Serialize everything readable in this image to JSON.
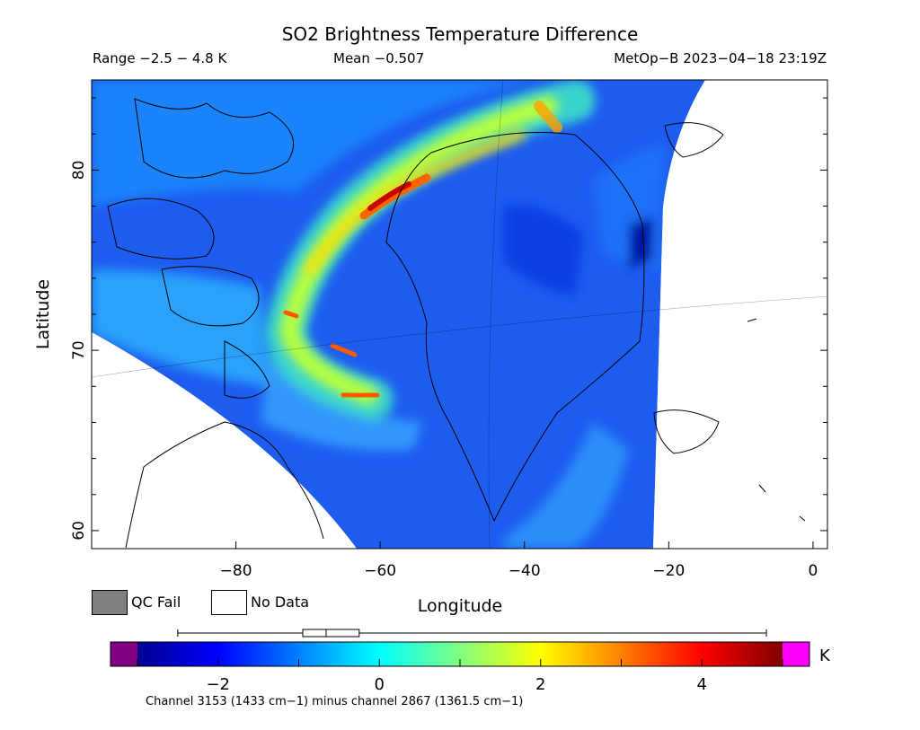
{
  "chart_data": {
    "type": "heatmap",
    "title": "SO2 Brightness Temperature Difference",
    "range_text": "Range −2.5 − 4.8 K",
    "mean_text": "Mean −0.507",
    "satellite_text": "MetOp−B 2023−04−18 23:19Z",
    "xlabel": "Longitude",
    "ylabel": "Latitude",
    "xlim": [
      -100,
      2
    ],
    "ylim": [
      59,
      85
    ],
    "x_ticks": [
      -80,
      -60,
      -40,
      -20,
      0
    ],
    "x_tick_labels": [
      "−80",
      "−60",
      "−40",
      "−20",
      "0"
    ],
    "y_ticks": [
      60,
      70,
      80
    ],
    "y_tick_labels": [
      "60",
      "70",
      "80"
    ],
    "colorbar": {
      "range": [
        -3,
        5
      ],
      "ticks": [
        -2,
        0,
        2,
        4
      ],
      "tick_labels": [
        "−2",
        "0",
        "2",
        "4"
      ],
      "units": "K",
      "under_color": "#800080",
      "over_color": "#ff00ff",
      "stats_box": {
        "min": -2.5,
        "q1": -0.95,
        "median": -0.66,
        "q3": -0.25,
        "max": 4.8
      }
    },
    "legend": [
      {
        "label": "QC Fail",
        "color": "#7f7f7f"
      },
      {
        "label": "No Data",
        "color": "#ffffff"
      }
    ],
    "footnote": "Channel 3153 (1433 cm−1) minus channel 2867 (1361.5 cm−1)"
  }
}
